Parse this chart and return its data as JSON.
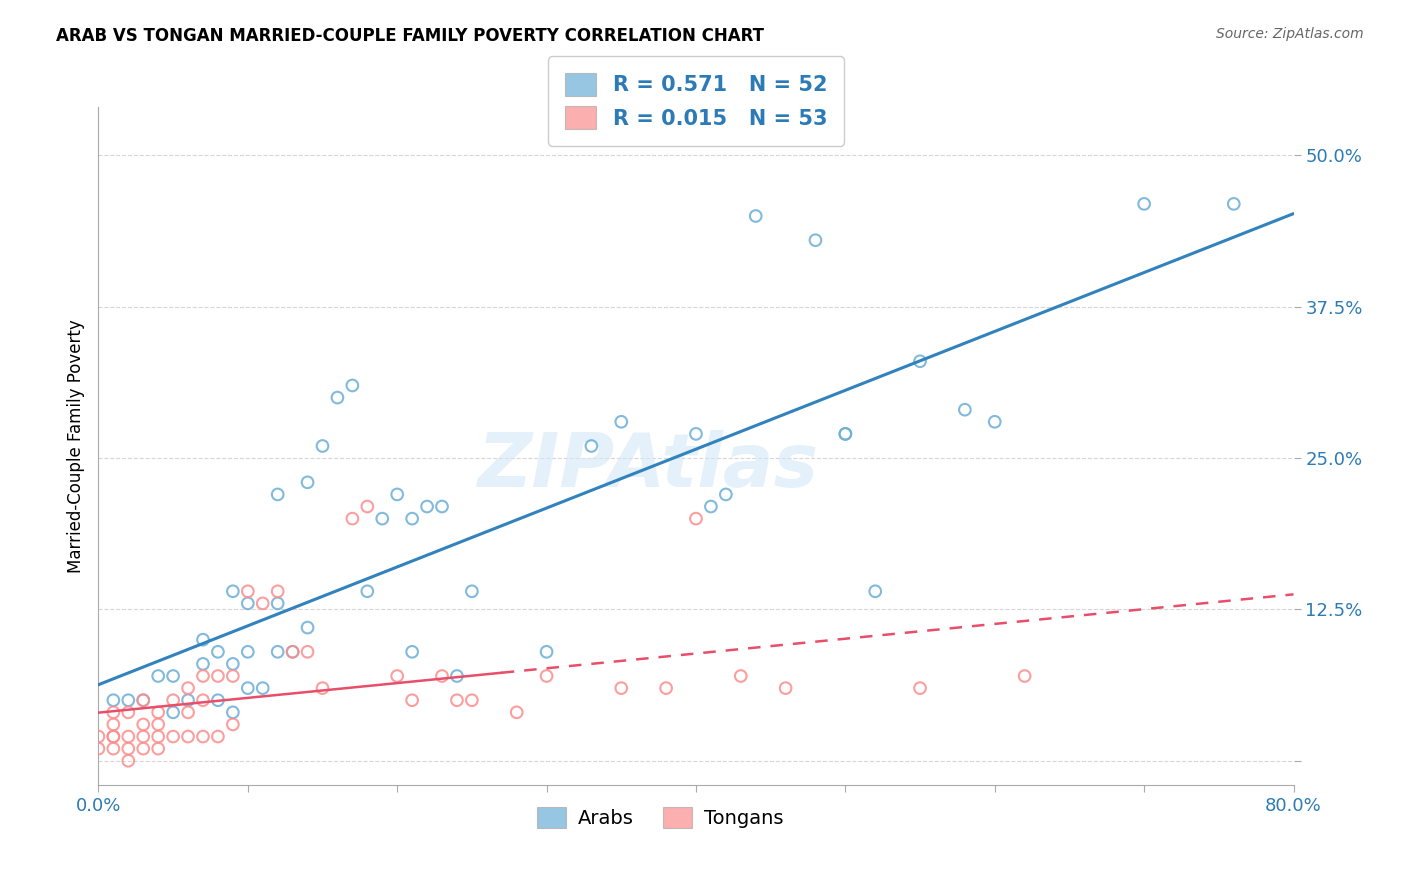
{
  "title": "ARAB VS TONGAN MARRIED-COUPLE FAMILY POVERTY CORRELATION CHART",
  "source": "Source: ZipAtlas.com",
  "ylabel_label": "Married-Couple Family Poverty",
  "xlim": [
    0.0,
    0.8
  ],
  "ylim": [
    -0.02,
    0.54
  ],
  "xticks": [
    0.0,
    0.1,
    0.2,
    0.3,
    0.4,
    0.5,
    0.6,
    0.7,
    0.8
  ],
  "xticklabels": [
    "0.0%",
    "",
    "",
    "",
    "",
    "",
    "",
    "",
    "80.0%"
  ],
  "yticks": [
    0.0,
    0.125,
    0.25,
    0.375,
    0.5
  ],
  "yticklabels": [
    "",
    "12.5%",
    "25.0%",
    "37.5%",
    "50.0%"
  ],
  "arab_color": "#6baed6",
  "tongan_color": "#fc8d8d",
  "arab_R": 0.571,
  "arab_N": 52,
  "tongan_R": 0.015,
  "tongan_N": 53,
  "legend_label_arab": "Arabs",
  "legend_label_tongan": "Tongans",
  "watermark": "ZIPAtlas",
  "arab_scatter_x": [
    0.01,
    0.02,
    0.03,
    0.04,
    0.05,
    0.05,
    0.06,
    0.07,
    0.07,
    0.08,
    0.08,
    0.09,
    0.09,
    0.09,
    0.1,
    0.1,
    0.1,
    0.11,
    0.12,
    0.12,
    0.12,
    0.13,
    0.14,
    0.14,
    0.15,
    0.16,
    0.17,
    0.18,
    0.19,
    0.2,
    0.21,
    0.21,
    0.22,
    0.23,
    0.24,
    0.25,
    0.3,
    0.33,
    0.35,
    0.4,
    0.41,
    0.42,
    0.44,
    0.48,
    0.5,
    0.5,
    0.52,
    0.55,
    0.58,
    0.6,
    0.7,
    0.76
  ],
  "arab_scatter_y": [
    0.05,
    0.05,
    0.05,
    0.07,
    0.04,
    0.07,
    0.05,
    0.08,
    0.1,
    0.05,
    0.09,
    0.04,
    0.08,
    0.14,
    0.06,
    0.09,
    0.13,
    0.06,
    0.09,
    0.13,
    0.22,
    0.09,
    0.11,
    0.23,
    0.26,
    0.3,
    0.31,
    0.14,
    0.2,
    0.22,
    0.09,
    0.2,
    0.21,
    0.21,
    0.07,
    0.14,
    0.09,
    0.26,
    0.28,
    0.27,
    0.21,
    0.22,
    0.45,
    0.43,
    0.27,
    0.27,
    0.14,
    0.33,
    0.29,
    0.28,
    0.46,
    0.46
  ],
  "tongan_scatter_x": [
    0.0,
    0.0,
    0.01,
    0.01,
    0.01,
    0.01,
    0.01,
    0.02,
    0.02,
    0.02,
    0.02,
    0.03,
    0.03,
    0.03,
    0.03,
    0.04,
    0.04,
    0.04,
    0.04,
    0.05,
    0.05,
    0.06,
    0.06,
    0.06,
    0.07,
    0.07,
    0.07,
    0.08,
    0.08,
    0.09,
    0.09,
    0.1,
    0.11,
    0.12,
    0.13,
    0.14,
    0.15,
    0.17,
    0.18,
    0.2,
    0.21,
    0.23,
    0.24,
    0.25,
    0.28,
    0.3,
    0.35,
    0.38,
    0.4,
    0.43,
    0.46,
    0.55,
    0.62
  ],
  "tongan_scatter_y": [
    0.01,
    0.02,
    0.01,
    0.02,
    0.02,
    0.03,
    0.04,
    0.0,
    0.01,
    0.02,
    0.04,
    0.01,
    0.02,
    0.03,
    0.05,
    0.01,
    0.02,
    0.03,
    0.04,
    0.02,
    0.05,
    0.02,
    0.04,
    0.06,
    0.02,
    0.05,
    0.07,
    0.02,
    0.07,
    0.03,
    0.07,
    0.14,
    0.13,
    0.14,
    0.09,
    0.09,
    0.06,
    0.2,
    0.21,
    0.07,
    0.05,
    0.07,
    0.05,
    0.05,
    0.04,
    0.07,
    0.06,
    0.06,
    0.2,
    0.07,
    0.06,
    0.06,
    0.07
  ],
  "arab_line_color": "#3182bd",
  "tongan_line_color": "#e84e6a",
  "tongan_line_solid_end": 0.27,
  "grid_color": "#cccccc",
  "marker_size": 70,
  "marker_alpha": 0.45,
  "marker_facecolor_alpha": 0.3,
  "marker_edgewidth": 1.5
}
